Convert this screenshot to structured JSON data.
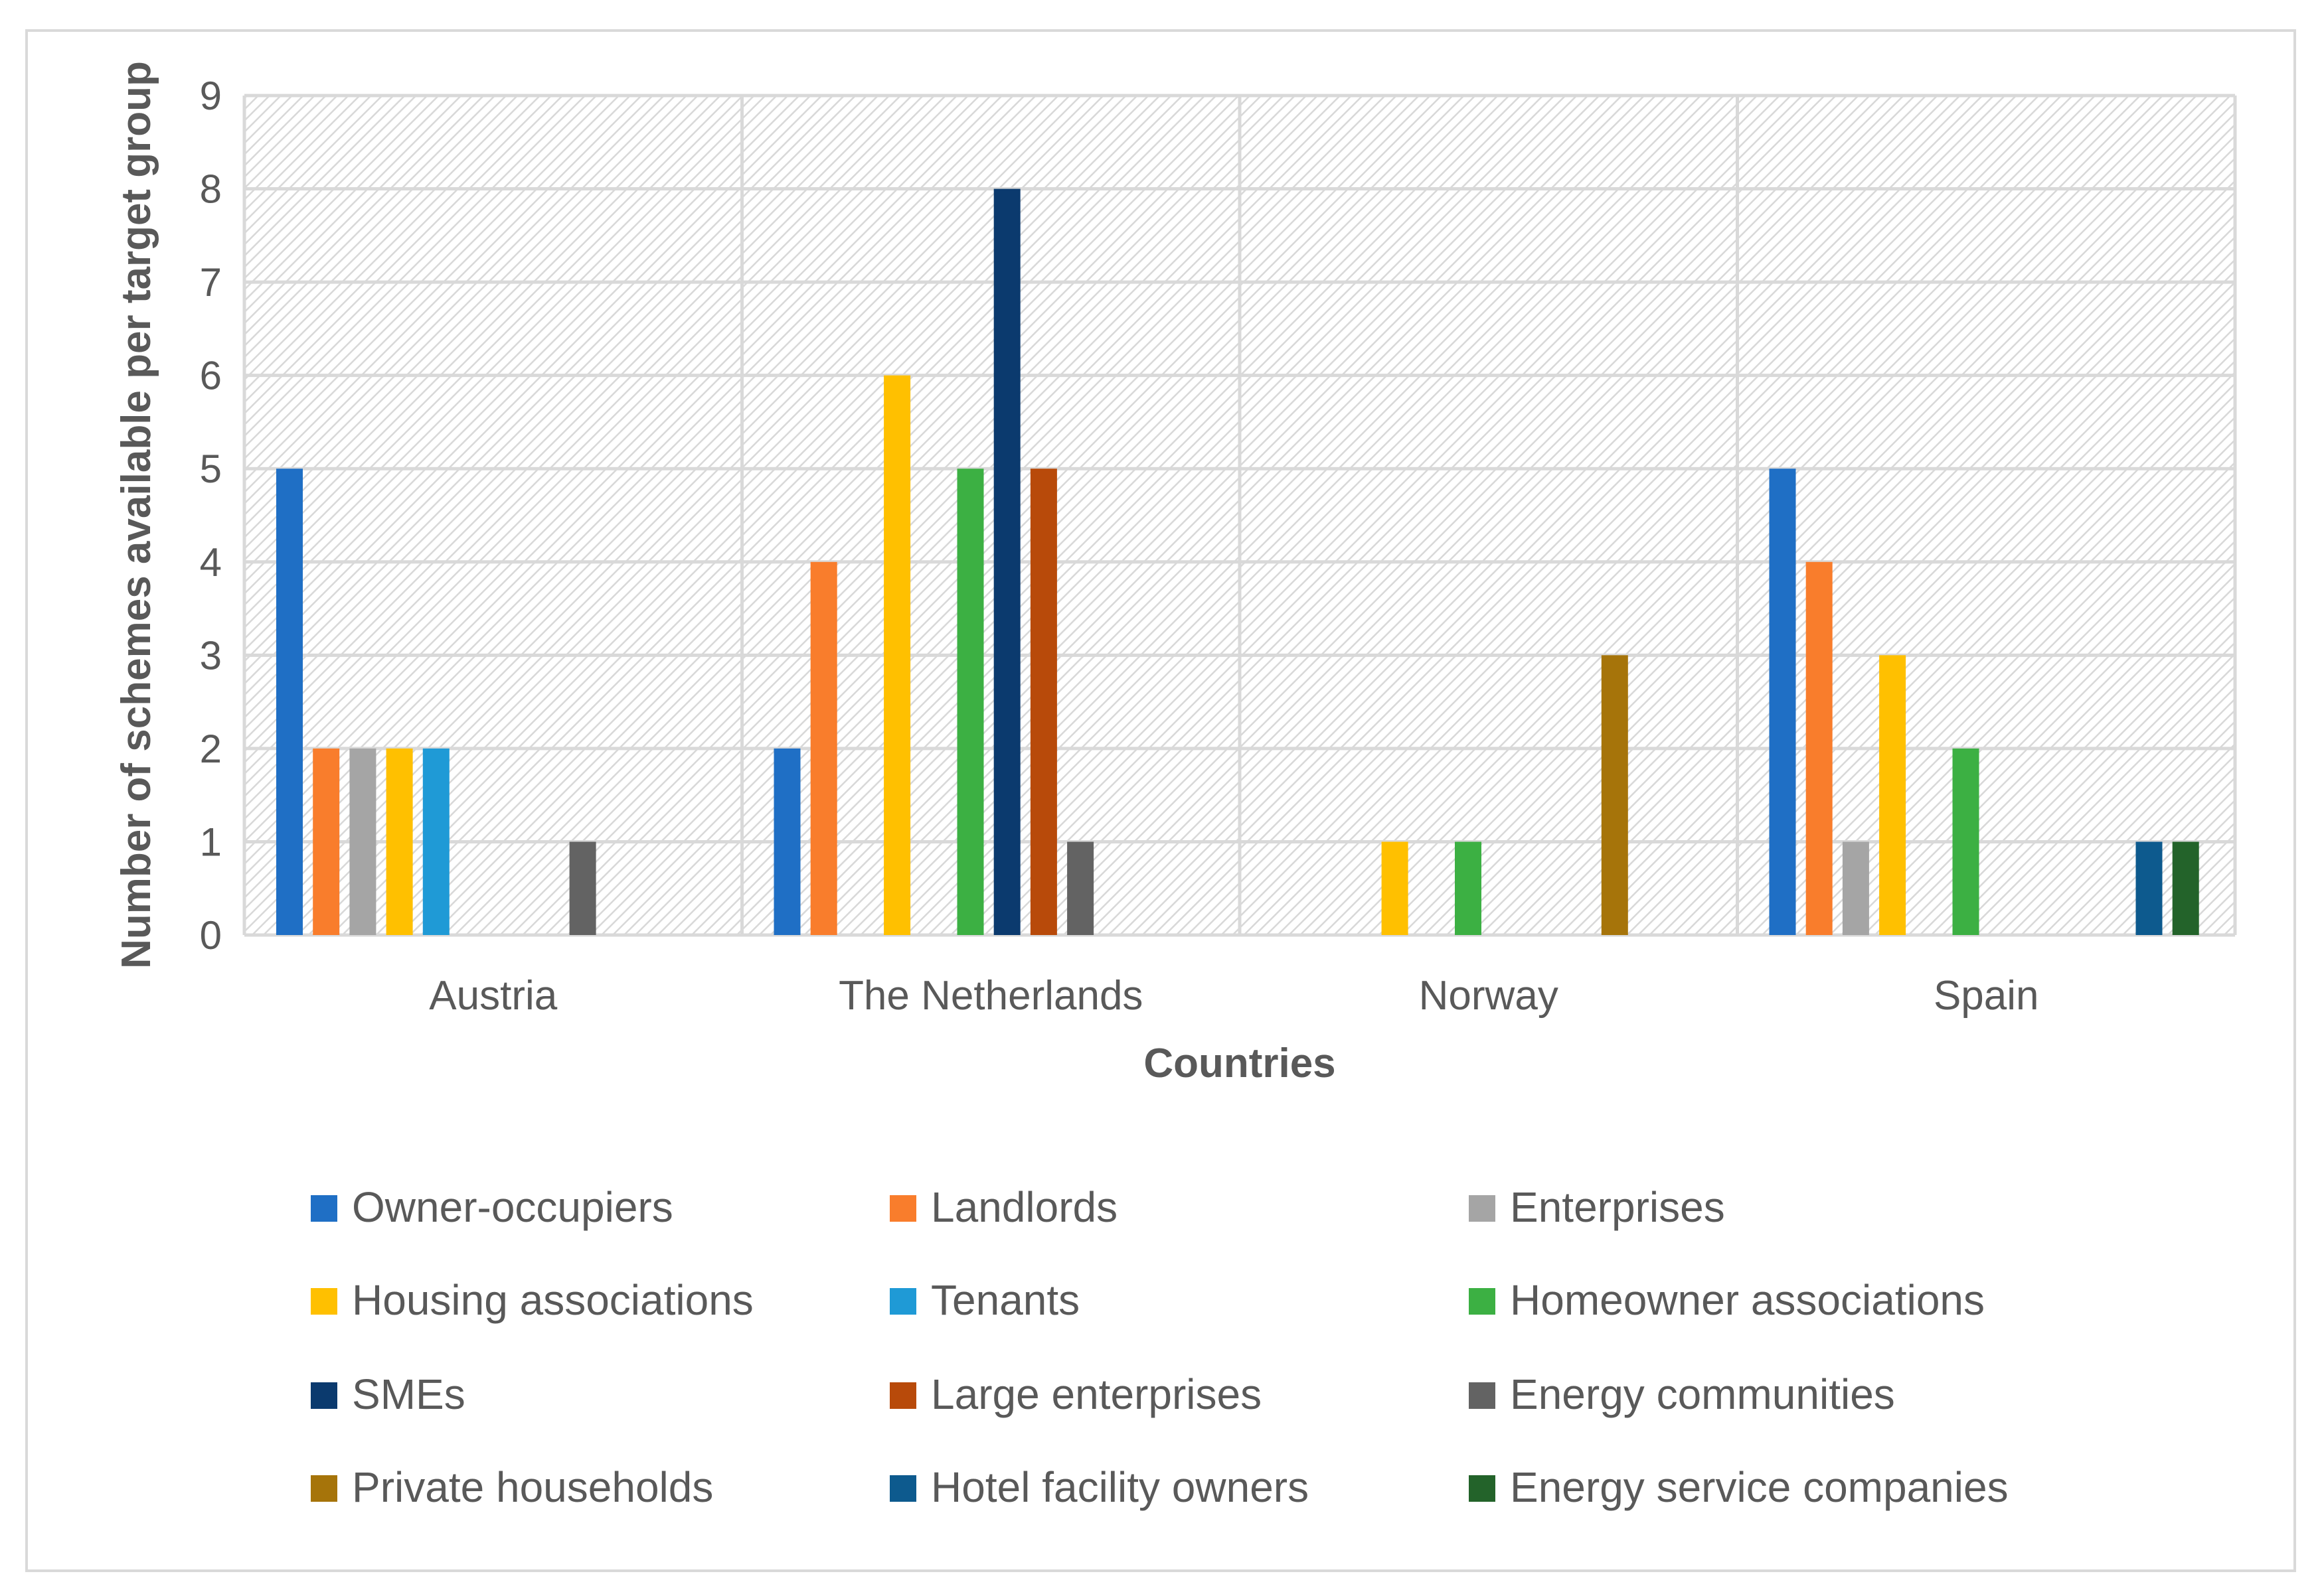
{
  "chart_data": {
    "type": "bar",
    "title": "",
    "xlabel": "Countries",
    "ylabel": "Number of schemes available per target group",
    "ylim": [
      0,
      9
    ],
    "yticks": [
      "0",
      "1",
      "2",
      "3",
      "4",
      "5",
      "6",
      "7",
      "8",
      "9"
    ],
    "grid": true,
    "legend_position": "bottom",
    "categories": [
      "Austria",
      "The Netherlands",
      "Norway",
      "Spain"
    ],
    "series": [
      {
        "name": "Owner-occupiers",
        "color": "#1f6fc5",
        "values": [
          5,
          2,
          0,
          5
        ]
      },
      {
        "name": "Landlords",
        "color": "#f97d2c",
        "values": [
          2,
          4,
          0,
          4
        ]
      },
      {
        "name": "Enterprises",
        "color": "#a5a5a5",
        "values": [
          2,
          0,
          0,
          1
        ]
      },
      {
        "name": "Housing associations",
        "color": "#ffc000",
        "values": [
          2,
          6,
          1,
          3
        ]
      },
      {
        "name": "Tenants",
        "color": "#1f9ad6",
        "values": [
          2,
          0,
          0,
          0
        ]
      },
      {
        "name": "Homeowner associations",
        "color": "#3cb043",
        "values": [
          0,
          5,
          1,
          2
        ]
      },
      {
        "name": "SMEs",
        "color": "#0b3a6e",
        "values": [
          0,
          8,
          0,
          0
        ]
      },
      {
        "name": "Large enterprises",
        "color": "#b84a0a",
        "values": [
          0,
          5,
          0,
          0
        ]
      },
      {
        "name": "Energy communities",
        "color": "#636363",
        "values": [
          1,
          1,
          0,
          0
        ]
      },
      {
        "name": "Private households",
        "color": "#a6740a",
        "values": [
          0,
          0,
          3,
          0
        ]
      },
      {
        "name": "Hotel facility owners",
        "color": "#0d5a8e",
        "values": [
          0,
          0,
          0,
          1
        ]
      },
      {
        "name": "Energy service companies",
        "color": "#23632a",
        "values": [
          0,
          0,
          0,
          1
        ]
      }
    ]
  }
}
